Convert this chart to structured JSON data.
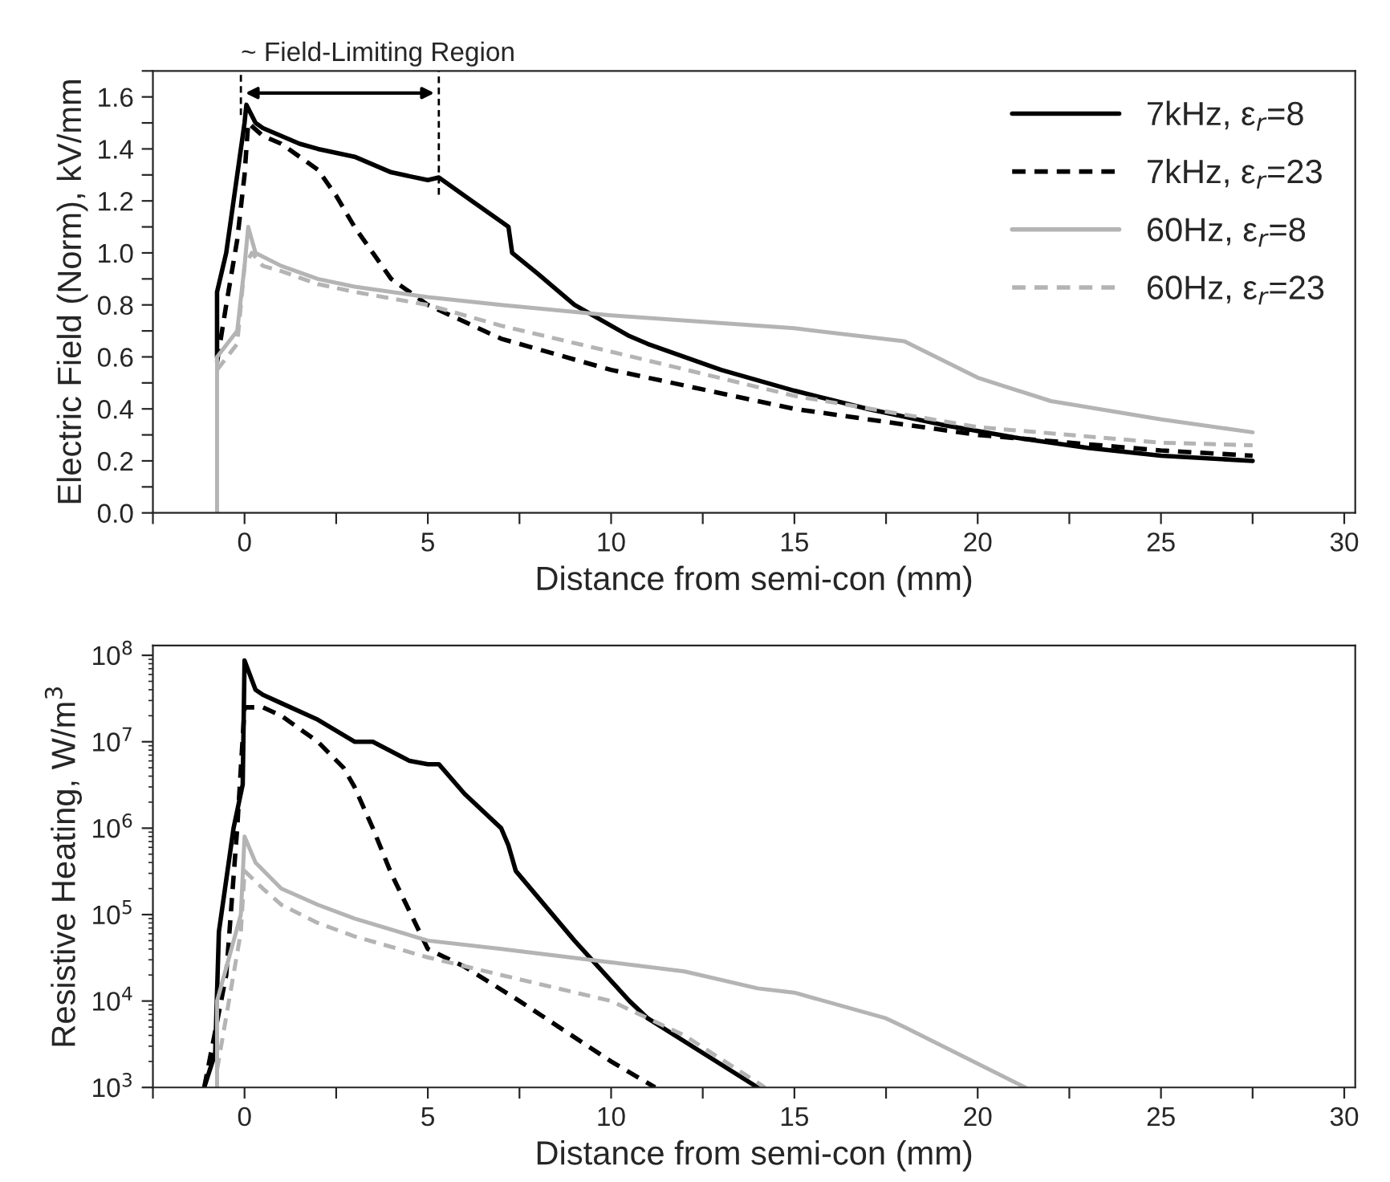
{
  "chart_data": [
    {
      "type": "line",
      "xlabel": "Distance from semi-con (mm)",
      "ylabel": "Electric Field (Norm), kV/mm",
      "xlim": [
        -2.5,
        30.3
      ],
      "xticks": [
        {
          "value": -2.5,
          "label": null
        },
        0,
        {
          "value": 2.5,
          "label": null
        },
        5,
        {
          "value": 7.5,
          "label": null
        },
        10,
        {
          "value": 12.5,
          "label": null
        },
        15,
        {
          "value": 17.5,
          "label": null
        },
        20,
        {
          "value": 22.5,
          "label": null
        },
        25,
        {
          "value": 27.5,
          "label": null
        },
        30
      ],
      "ylim": [
        0,
        1.7
      ],
      "yticks": [
        {
          "value": 0,
          "label": "0.0"
        },
        {
          "value": 0.1,
          "label": null
        },
        {
          "value": 0.2,
          "label": "0.2"
        },
        {
          "value": 0.3,
          "label": null
        },
        {
          "value": 0.4,
          "label": "0.4"
        },
        {
          "value": 0.5,
          "label": null
        },
        {
          "value": 0.6,
          "label": "0.6"
        },
        {
          "value": 0.7,
          "label": null
        },
        {
          "value": 0.8,
          "label": "0.8"
        },
        {
          "value": 0.9,
          "label": null
        },
        {
          "value": 1.0,
          "label": "1.0"
        },
        {
          "value": 1.1,
          "label": null
        },
        {
          "value": 1.2,
          "label": "1.2"
        },
        {
          "value": 1.3,
          "label": null
        },
        {
          "value": 1.4,
          "label": "1.4"
        },
        {
          "value": 1.5,
          "label": null
        },
        {
          "value": 1.6,
          "label": "1.6"
        },
        {
          "value": 1.7,
          "label": null
        }
      ],
      "grid": false,
      "legend": "top right",
      "ref_lines": [
        {
          "axis": "x",
          "value": -0.1,
          "line_style": "dashed",
          "color": "#000000"
        },
        {
          "axis": "x",
          "value": 5.3,
          "line_style": "dashed",
          "color": "#000000"
        }
      ],
      "annotations": [
        "~ Field-Limiting Region"
      ],
      "series": [
        {
          "name": "7kHz, ε$_{r}$=8",
          "color": "#000000",
          "line_style": "solid",
          "x": [
            -0.75,
            -0.75,
            -0.5,
            -0.2,
            0,
            0.05,
            0.3,
            0.5,
            1,
            1.5,
            2,
            3,
            3.5,
            4,
            5,
            5.3,
            6.2,
            7,
            7.2,
            7.3,
            8,
            9,
            10,
            10.5,
            11,
            13,
            15,
            17,
            19,
            21,
            23,
            25,
            27.5
          ],
          "values": [
            0.6,
            0.85,
            1.0,
            1.3,
            1.5,
            1.57,
            1.5,
            1.48,
            1.45,
            1.42,
            1.4,
            1.37,
            1.34,
            1.31,
            1.28,
            1.29,
            1.2,
            1.12,
            1.1,
            1.0,
            0.92,
            0.8,
            0.72,
            0.68,
            0.65,
            0.55,
            0.47,
            0.4,
            0.34,
            0.29,
            0.25,
            0.22,
            0.2
          ]
        },
        {
          "name": "7kHz, ε$_{r}$=23",
          "color": "#000000",
          "line_style": "dashed",
          "x": [
            -0.75,
            -0.5,
            -0.2,
            0,
            0.1,
            0.5,
            1,
            2,
            2.5,
            3,
            3.5,
            4,
            5,
            7,
            10,
            15,
            20,
            25,
            27.5
          ],
          "values": [
            0.58,
            0.8,
            1.05,
            1.3,
            1.5,
            1.45,
            1.42,
            1.32,
            1.22,
            1.1,
            1.0,
            0.9,
            0.8,
            0.67,
            0.55,
            0.4,
            0.3,
            0.24,
            0.22
          ]
        },
        {
          "name": "60Hz, ε$_{r}$=8",
          "color": "#b4b4b4",
          "line_style": "solid",
          "x": [
            -0.75,
            -0.75,
            -0.2,
            0,
            0.1,
            0.3,
            1,
            2,
            3,
            5,
            7,
            10,
            15,
            18,
            20,
            22,
            25,
            27.5
          ],
          "values": [
            0,
            0.6,
            0.7,
            0.95,
            1.1,
            1.0,
            0.95,
            0.9,
            0.87,
            0.83,
            0.8,
            0.76,
            0.71,
            0.66,
            0.52,
            0.43,
            0.36,
            0.31
          ]
        },
        {
          "name": "60Hz, ε$_{r}$=23",
          "color": "#b4b4b4",
          "line_style": "dashed",
          "x": [
            -0.75,
            -0.2,
            0,
            0.2,
            0.5,
            1,
            2,
            3,
            5,
            7,
            10,
            15,
            20,
            25,
            27.5
          ],
          "values": [
            0.55,
            0.65,
            0.95,
            1.0,
            0.95,
            0.93,
            0.88,
            0.85,
            0.8,
            0.72,
            0.62,
            0.45,
            0.33,
            0.27,
            0.26
          ]
        }
      ]
    },
    {
      "type": "line",
      "xlabel": "Distance from semi-con (mm)",
      "ylabel": "Resistive Heating, W/m$^{3}$",
      "log": "y",
      "xlim": [
        -2.5,
        30.3
      ],
      "xticks": [
        {
          "value": -2.5,
          "label": null
        },
        0,
        {
          "value": 2.5,
          "label": null
        },
        5,
        {
          "value": 7.5,
          "label": null
        },
        10,
        {
          "value": 12.5,
          "label": null
        },
        15,
        {
          "value": 17.5,
          "label": null
        },
        20,
        {
          "value": 22.5,
          "label": null
        },
        25,
        {
          "value": 27.5,
          "label": null
        },
        30
      ],
      "ylim": [
        1000,
        130000000
      ],
      "yticks": [
        {
          "value": 1000,
          "label": "10$^{3}$"
        },
        {
          "value": 10000,
          "label": "10$^{4}$"
        },
        {
          "value": 100000,
          "label": "10$^{5}$"
        },
        {
          "value": 1000000,
          "label": "10$^{6}$"
        },
        {
          "value": 10000000,
          "label": "10$^{7}$"
        },
        {
          "value": 100000000,
          "label": "10$^{8}$"
        }
      ],
      "grid": false,
      "series": [
        {
          "color": "#000000",
          "line_style": "solid",
          "x": [
            -1.1,
            -0.8,
            -0.7,
            -0.3,
            -0.05,
            0,
            0.3,
            0.5,
            1,
            2,
            3,
            3.5,
            4.5,
            5,
            5.3,
            6,
            7,
            7.2,
            7.4,
            9,
            10.5,
            11,
            14
          ],
          "values": [
            1000,
            2500,
            63000,
            1000000,
            3200000,
            87000000,
            40000000,
            35000000,
            28000000,
            18000000,
            10000000,
            10000000,
            6000000,
            5500000,
            5500000,
            2500000,
            1000000,
            630000,
            320000,
            50000,
            10000,
            6300,
            1000
          ]
        },
        {
          "color": "#000000",
          "line_style": "dashed",
          "x": [
            -1.1,
            -0.5,
            -0.2,
            0,
            0.5,
            1,
            2,
            2.7,
            3,
            3.5,
            4,
            5,
            6,
            7.5,
            10,
            11.2
          ],
          "values": [
            1000,
            20000,
            1000000,
            25000000,
            25000000,
            20000000,
            10000000,
            5000000,
            3000000,
            1000000,
            300000,
            40000,
            25000,
            10000,
            2000,
            1000
          ]
        },
        {
          "color": "#b4b4b4",
          "line_style": "solid",
          "x": [
            -0.75,
            -0.75,
            -0.1,
            0,
            0.3,
            1,
            2,
            3,
            5,
            7,
            10,
            12,
            14,
            15,
            17.5,
            18,
            21.3
          ],
          "values": [
            1000,
            10000,
            100000,
            800000,
            400000,
            200000,
            130000,
            90000,
            50000,
            40000,
            28000,
            22000,
            14000,
            12500,
            6300,
            5000,
            1000
          ]
        },
        {
          "color": "#b4b4b4",
          "line_style": "dashed",
          "x": [
            -0.75,
            -0.1,
            0,
            0.5,
            1,
            2,
            3,
            5,
            7,
            10,
            12,
            14.2
          ],
          "values": [
            1600,
            63000,
            320000,
            200000,
            130000,
            80000,
            56000,
            32000,
            20000,
            10000,
            4000,
            1000
          ]
        }
      ]
    }
  ]
}
